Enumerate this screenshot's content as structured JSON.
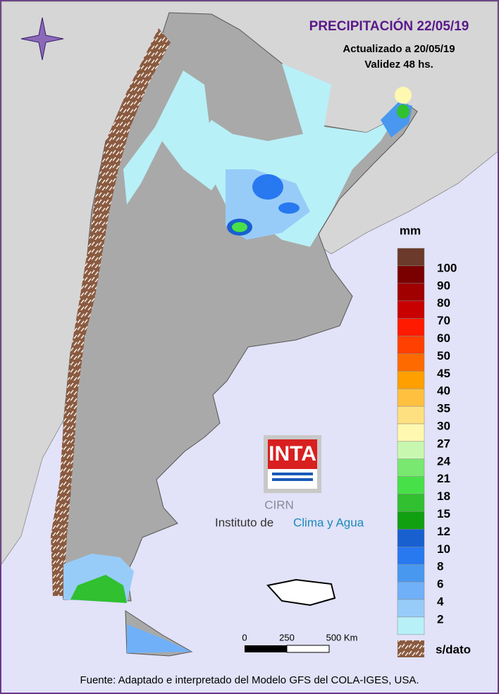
{
  "header": {
    "title": "PRECIPITACIÓN 22/05/19",
    "updated": "Actualizado a 20/05/19",
    "validity": "Validez 48 hs."
  },
  "legend": {
    "unit": "mm",
    "top_color": "#6b3a2a",
    "values": [
      100,
      90,
      80,
      70,
      60,
      50,
      45,
      40,
      35,
      30,
      27,
      24,
      21,
      18,
      15,
      12,
      10,
      8,
      6,
      4,
      2
    ],
    "colors": [
      "#7a0000",
      "#a00000",
      "#c80000",
      "#ff1a00",
      "#ff4000",
      "#ff6a00",
      "#ffa000",
      "#ffc040",
      "#ffe080",
      "#fff8b0",
      "#c8f8b0",
      "#78e870",
      "#48e048",
      "#30c030",
      "#10a010",
      "#1860d0",
      "#2878f0",
      "#4898f0",
      "#70b0f8",
      "#98ccf8",
      "#b8f0f8"
    ],
    "no_data": "s/dato"
  },
  "scale": {
    "labels": [
      "0",
      "250",
      "500 Km"
    ]
  },
  "logo": {
    "brand": "INTA",
    "unit": "CIRN",
    "institute": "Instituto de",
    "institute_name": "Clima y Agua"
  },
  "footer": "Fuente: Adaptado e interpretado del Modelo GFS del COLA-IGES, USA."
}
